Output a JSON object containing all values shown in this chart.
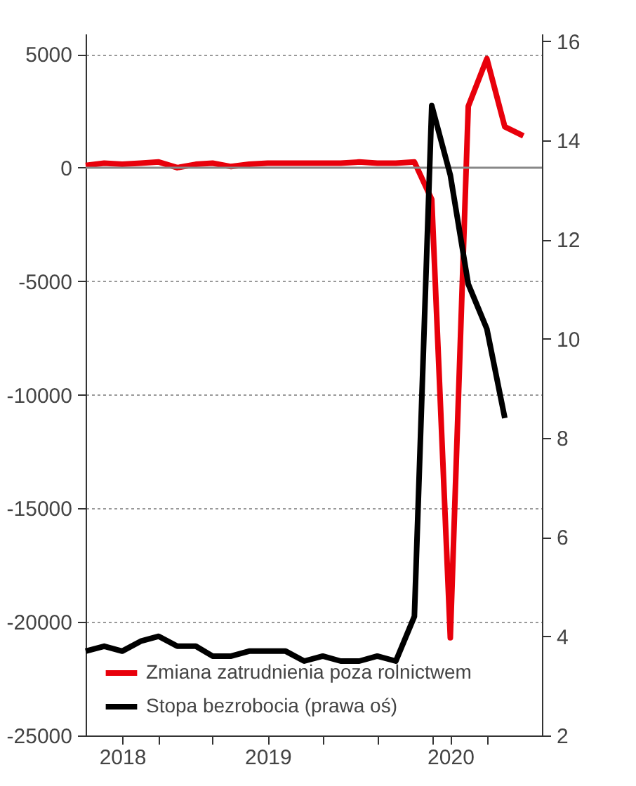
{
  "chart_data": {
    "type": "line",
    "x": [
      "2018-08",
      "2018-09",
      "2018-10",
      "2018-11",
      "2018-12",
      "2019-01",
      "2019-02",
      "2019-03",
      "2019-04",
      "2019-05",
      "2019-06",
      "2019-07",
      "2019-08",
      "2019-09",
      "2019-10",
      "2019-11",
      "2019-12",
      "2020-01",
      "2020-02",
      "2020-03",
      "2020-04",
      "2020-05",
      "2020-06",
      "2020-07",
      "2020-08"
    ],
    "series": [
      {
        "name": "Zmiana zatrudnienia poza rolnictwem",
        "color": "#e8000b",
        "axis": "y",
        "values": [
          100,
          200,
          150,
          200,
          250,
          0,
          150,
          200,
          50,
          150,
          200,
          200,
          200,
          200,
          200,
          250,
          200,
          200,
          250,
          -1400,
          -20700,
          2700,
          4800,
          1800,
          1400
        ]
      },
      {
        "name": "Stopa bezrobocia (prawa oś)",
        "color": "#000000",
        "axis": "y2",
        "values": [
          3.7,
          3.8,
          3.7,
          3.9,
          4.0,
          3.8,
          3.8,
          3.6,
          3.6,
          3.7,
          3.7,
          3.7,
          3.5,
          3.6,
          3.5,
          3.5,
          3.6,
          3.5,
          4.4,
          14.7,
          13.3,
          11.1,
          10.2,
          8.4,
          null
        ]
      }
    ],
    "xlim": [
      "2018-08",
      "2020-09"
    ],
    "xticks": [
      {
        "value": "2018-10",
        "label": "2018"
      },
      {
        "value": "2018-12",
        "label": null
      },
      {
        "value": "2019-03",
        "label": null
      },
      {
        "value": "2019-06",
        "label": "2019"
      },
      {
        "value": "2019-09",
        "label": null
      },
      {
        "value": "2019-12",
        "label": null
      },
      {
        "value": "2020-03",
        "label": null
      },
      {
        "value": "2020-04",
        "label": "2020"
      },
      {
        "value": "2020-06",
        "label": null
      }
    ],
    "ylim": [
      -25000,
      5900
    ],
    "yticks": [
      -25000,
      -20000,
      -15000,
      -10000,
      -5000,
      0,
      5000
    ],
    "y2lim": [
      2,
      16.15
    ],
    "y2ticks": [
      2,
      4,
      6,
      8,
      10,
      12,
      14,
      16
    ],
    "ref_lines": [
      {
        "axis": "y",
        "value": 0,
        "color": "#888888"
      }
    ],
    "grid": "y",
    "legend": "bottom left",
    "line_style": "solid",
    "marker": "none"
  }
}
